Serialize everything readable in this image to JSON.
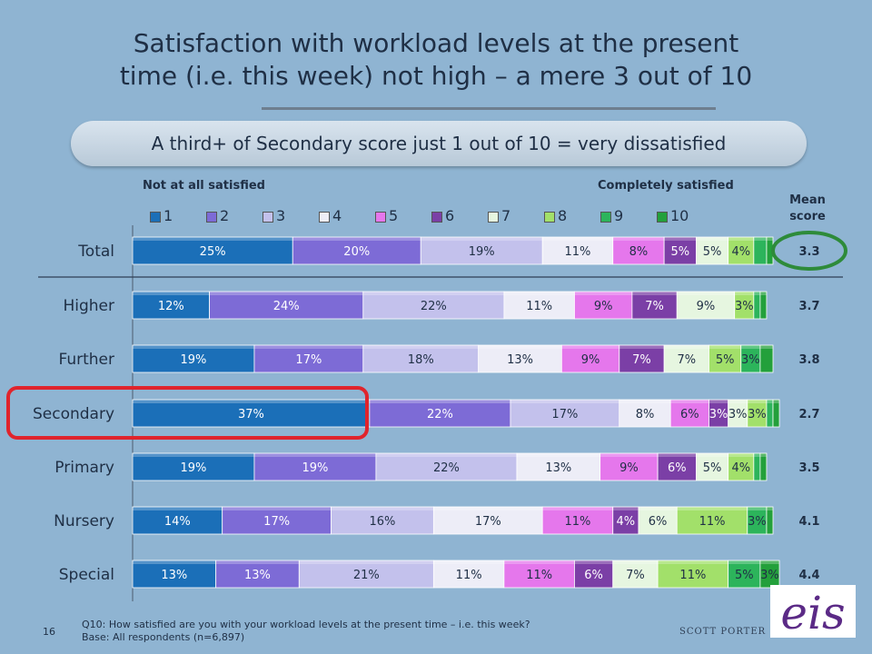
{
  "title_line1": "Satisfaction with workload levels at the present",
  "title_line2": "time (i.e. this week) not high – a mere 3 out of 10",
  "subtitle": "A third+ of Secondary score just 1 out of 10 = very dissatisfied",
  "scale_low_label": "Not at all satisfied",
  "scale_high_label": "Completely satisfied",
  "mean_header_line1": "Mean",
  "mean_header_line2": "score",
  "footnote_line1": "Q10: How satisfied are you with your workload levels at the present time – i.e. this week?",
  "footnote_line2": "Base: All respondents (n=6,897)",
  "page_number": "16",
  "credit": "SCOTT PORTER",
  "logo_text": "eis",
  "colors": {
    "background": "#8fb4d2",
    "highlight_secondary": "#e0242c",
    "highlight_total_mean": "#2e8b3a",
    "series": [
      "#1b6fb8",
      "#7d6bd6",
      "#c3c1ec",
      "#ededf7",
      "#e577ec",
      "#7b3fa6",
      "#e6f6e0",
      "#a2e06a",
      "#2cb45b",
      "#23a03b"
    ]
  },
  "chart_data": {
    "type": "bar",
    "orientation": "horizontal",
    "stacked": true,
    "categories": [
      "Total",
      "Higher",
      "Further",
      "Secondary",
      "Primary",
      "Nursery",
      "Special"
    ],
    "series": [
      {
        "name": "1",
        "values": [
          25,
          12,
          19,
          37,
          19,
          14,
          13
        ]
      },
      {
        "name": "2",
        "values": [
          20,
          24,
          17,
          22,
          19,
          17,
          13
        ]
      },
      {
        "name": "3",
        "values": [
          19,
          22,
          18,
          17,
          22,
          16,
          21
        ]
      },
      {
        "name": "4",
        "values": [
          11,
          11,
          13,
          8,
          13,
          17,
          11
        ]
      },
      {
        "name": "5",
        "values": [
          8,
          9,
          9,
          6,
          9,
          11,
          11
        ]
      },
      {
        "name": "6",
        "values": [
          5,
          7,
          7,
          3,
          6,
          4,
          6
        ]
      },
      {
        "name": "7",
        "values": [
          5,
          9,
          7,
          3,
          5,
          6,
          7
        ]
      },
      {
        "name": "8",
        "values": [
          4,
          3,
          5,
          3,
          4,
          11,
          11
        ]
      },
      {
        "name": "9",
        "values": [
          2,
          1,
          3,
          1,
          1,
          3,
          5
        ]
      },
      {
        "name": "10",
        "values": [
          1,
          1,
          2,
          1,
          1,
          1,
          3
        ]
      }
    ],
    "labels": [
      [
        "25%",
        "20%",
        "19%",
        "11%",
        "8%",
        "5%",
        "5%",
        "4%",
        "",
        ""
      ],
      [
        "12%",
        "24%",
        "22%",
        "11%",
        "9%",
        "7%",
        "9%",
        "3%",
        "",
        ""
      ],
      [
        "19%",
        "17%",
        "18%",
        "13%",
        "9%",
        "7%",
        "7%",
        "5%",
        "3%",
        ""
      ],
      [
        "37%",
        "22%",
        "17%",
        "8%",
        "6%",
        "3%",
        "3%",
        "3%",
        "",
        ""
      ],
      [
        "19%",
        "19%",
        "22%",
        "13%",
        "9%",
        "6%",
        "5%",
        "4%",
        "",
        ""
      ],
      [
        "14%",
        "17%",
        "16%",
        "17%",
        "11%",
        "4%",
        "6%",
        "11%",
        "3%",
        ""
      ],
      [
        "13%",
        "13%",
        "21%",
        "11%",
        "11%",
        "6%",
        "7%",
        "11%",
        "5%",
        "3%"
      ]
    ],
    "mean_scores": [
      "3.3",
      "3.7",
      "3.8",
      "2.7",
      "3.5",
      "4.1",
      "4.4"
    ],
    "xlim": [
      0,
      100
    ],
    "legend_position": "top",
    "highlighted_category": "Secondary",
    "highlighted_mean": "Total"
  }
}
